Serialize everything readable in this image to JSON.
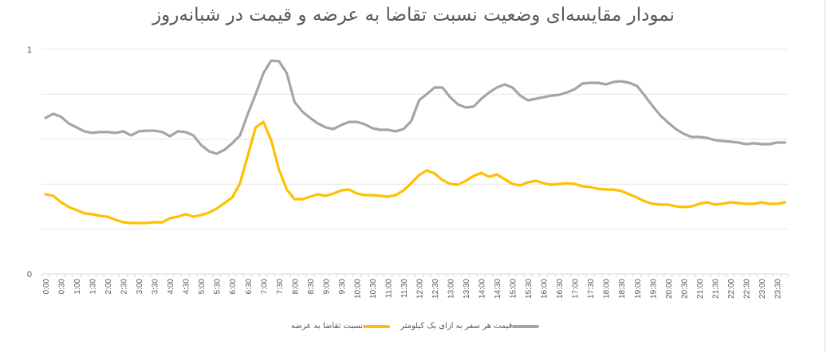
{
  "chart_data": {
    "type": "line",
    "title": "نمودار مقایسه‌ای وضعیت نسبت تقاضا به عرضه و قیمت در شبانه‌روز",
    "xlabel": "",
    "ylabel": "",
    "ylim": [
      0,
      1
    ],
    "y_ticks": [
      "0",
      "1"
    ],
    "gridlines": [
      0,
      0.2,
      0.4,
      0.6,
      0.8,
      1.0
    ],
    "grid": true,
    "legend_position": "bottom",
    "x_tick_labels": [
      "0:00",
      "0:30",
      "1:00",
      "1:30",
      "2:00",
      "2:30",
      "3:00",
      "3:30",
      "4:00",
      "4:30",
      "5:00",
      "5:30",
      "6:00",
      "6:30",
      "7:00",
      "7:30",
      "8:00",
      "8:30",
      "9:00",
      "9:30",
      "10:00",
      "10:30",
      "11:00",
      "11:30",
      "12:00",
      "12:30",
      "13:00",
      "13:30",
      "14:00",
      "14:30",
      "15:00",
      "15:30",
      "16:00",
      "16:30",
      "17:00",
      "17:30",
      "18:00",
      "18:30",
      "19:00",
      "19:30",
      "20:00",
      "20:30",
      "21:00",
      "21:30",
      "22:00",
      "22:30",
      "23:00",
      "23:30"
    ],
    "x_interval_minutes": 15,
    "series": [
      {
        "name": "نسبت تقاضا به عرضه",
        "color": "#FFC000",
        "values": [
          0.355,
          0.348,
          0.319,
          0.298,
          0.284,
          0.27,
          0.266,
          0.259,
          0.255,
          0.241,
          0.23,
          0.227,
          0.227,
          0.227,
          0.23,
          0.23,
          0.248,
          0.255,
          0.266,
          0.255,
          0.262,
          0.273,
          0.291,
          0.316,
          0.34,
          0.404,
          0.528,
          0.652,
          0.677,
          0.596,
          0.465,
          0.376,
          0.333,
          0.333,
          0.344,
          0.355,
          0.348,
          0.358,
          0.372,
          0.376,
          0.358,
          0.351,
          0.351,
          0.348,
          0.344,
          0.351,
          0.372,
          0.404,
          0.44,
          0.461,
          0.447,
          0.418,
          0.401,
          0.397,
          0.415,
          0.436,
          0.45,
          0.433,
          0.443,
          0.422,
          0.401,
          0.394,
          0.408,
          0.415,
          0.404,
          0.397,
          0.401,
          0.404,
          0.401,
          0.39,
          0.387,
          0.379,
          0.376,
          0.376,
          0.369,
          0.355,
          0.34,
          0.323,
          0.312,
          0.309,
          0.309,
          0.301,
          0.298,
          0.301,
          0.312,
          0.319,
          0.309,
          0.312,
          0.319,
          0.316,
          0.312,
          0.312,
          0.319,
          0.312,
          0.312,
          0.319
        ]
      },
      {
        "name": "قیمت هر سفر به ازای یک کیلومتر",
        "color": "#A5A5A5",
        "values": [
          0.695,
          0.713,
          0.7,
          0.67,
          0.653,
          0.635,
          0.628,
          0.632,
          0.632,
          0.628,
          0.635,
          0.617,
          0.635,
          0.638,
          0.638,
          0.632,
          0.613,
          0.635,
          0.632,
          0.617,
          0.574,
          0.546,
          0.535,
          0.553,
          0.582,
          0.617,
          0.713,
          0.8,
          0.894,
          0.95,
          0.947,
          0.894,
          0.766,
          0.723,
          0.695,
          0.67,
          0.653,
          0.645,
          0.663,
          0.677,
          0.677,
          0.667,
          0.649,
          0.642,
          0.642,
          0.635,
          0.645,
          0.681,
          0.773,
          0.801,
          0.83,
          0.83,
          0.787,
          0.755,
          0.741,
          0.745,
          0.78,
          0.808,
          0.83,
          0.844,
          0.83,
          0.794,
          0.773,
          0.78,
          0.787,
          0.794,
          0.798,
          0.808,
          0.823,
          0.848,
          0.851,
          0.851,
          0.844,
          0.855,
          0.858,
          0.851,
          0.837,
          0.794,
          0.748,
          0.706,
          0.674,
          0.645,
          0.624,
          0.61,
          0.61,
          0.606,
          0.596,
          0.592,
          0.589,
          0.585,
          0.578,
          0.582,
          0.578,
          0.578,
          0.585,
          0.585
        ]
      }
    ]
  },
  "legend": {
    "items": [
      {
        "label": "نسبت تقاضا به عرضه",
        "color": "#FFC000"
      },
      {
        "label": "قیمت هر سفر به ازای یک کیلومتر",
        "color": "#A5A5A5"
      }
    ]
  }
}
